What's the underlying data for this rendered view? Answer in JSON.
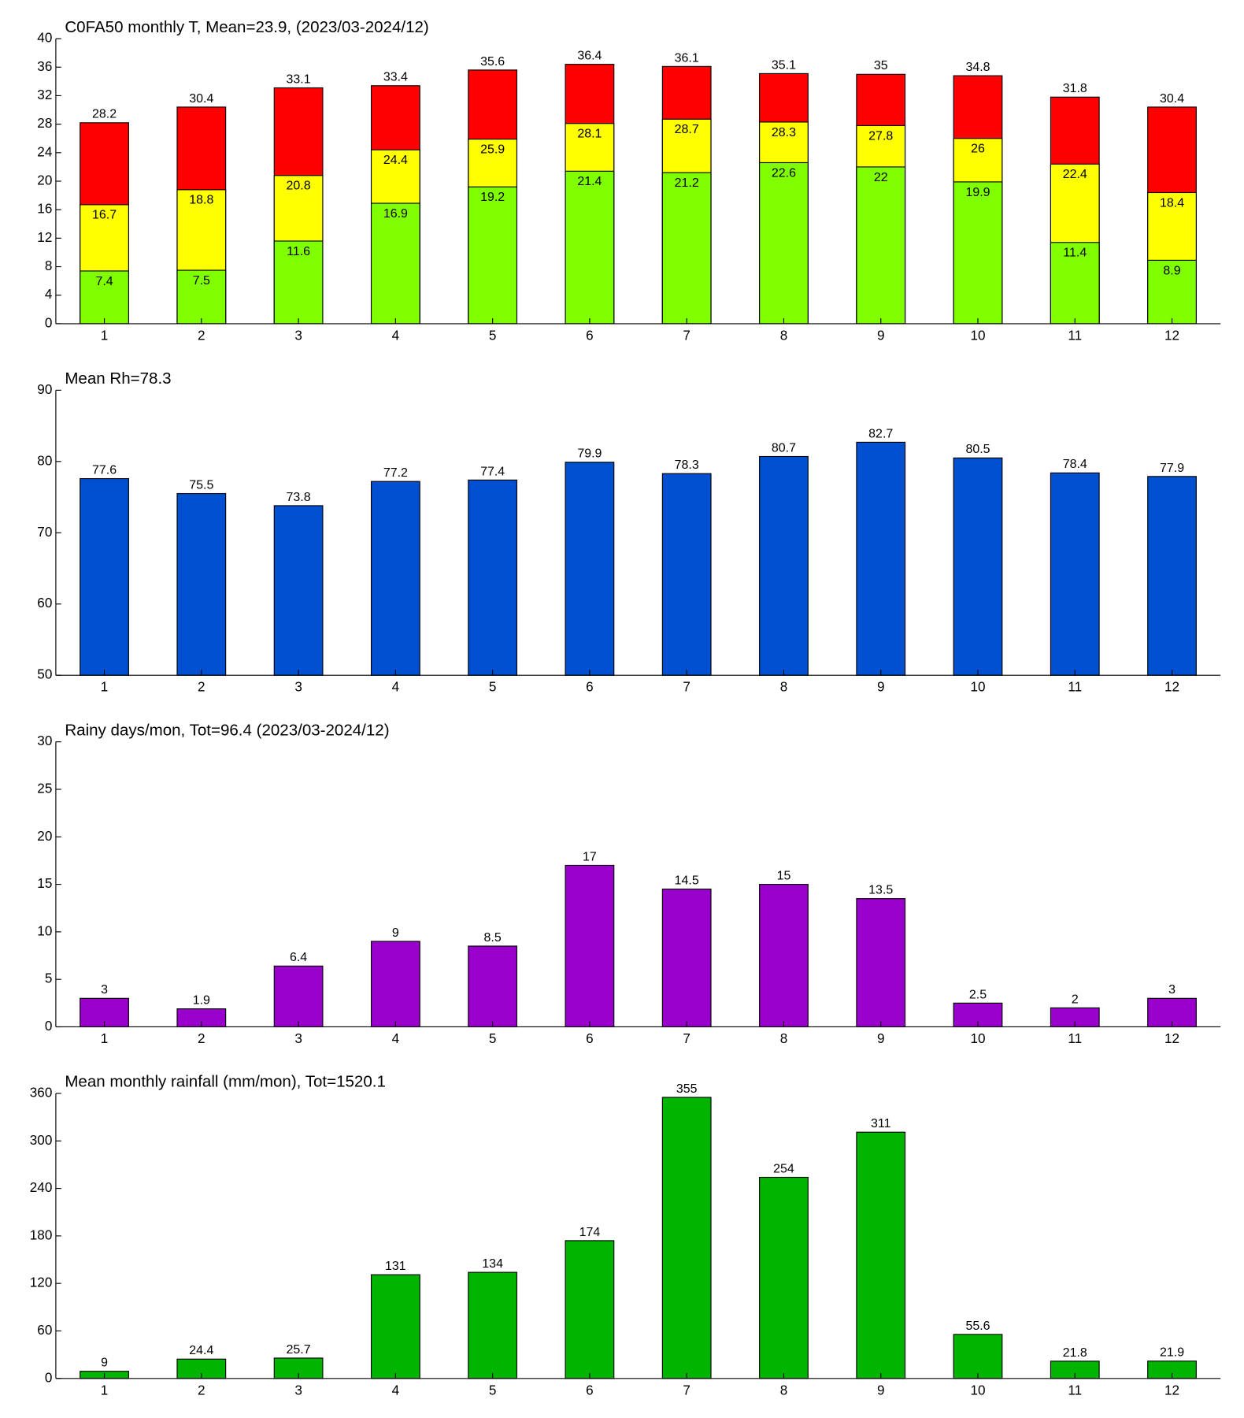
{
  "chart_data": [
    {
      "type": "bar",
      "title": "C0FA50 monthly T, Mean=23.9, (2023/03-2024/12)",
      "categories": [
        "1",
        "2",
        "3",
        "4",
        "5",
        "6",
        "7",
        "8",
        "9",
        "10",
        "11",
        "12"
      ],
      "series": [
        {
          "color": "#80ff00",
          "values": [
            7.4,
            7.5,
            11.6,
            16.9,
            19.2,
            21.4,
            21.2,
            22.6,
            22,
            19.9,
            11.4,
            8.9
          ]
        },
        {
          "color": "#ffff00",
          "values": [
            16.7,
            18.8,
            20.8,
            24.4,
            25.9,
            28.1,
            28.7,
            28.3,
            27.8,
            26,
            22.4,
            18.4
          ]
        },
        {
          "color": "#ff0000",
          "values": [
            28.2,
            30.4,
            33.1,
            33.4,
            35.6,
            36.4,
            36.1,
            35.1,
            35,
            34.8,
            31.8,
            30.4
          ]
        }
      ],
      "ylim": [
        0,
        40
      ],
      "yticks": [
        0,
        4,
        8,
        12,
        16,
        20,
        24,
        28,
        32,
        36,
        40
      ]
    },
    {
      "type": "bar",
      "title": "Mean Rh=78.3",
      "categories": [
        "1",
        "2",
        "3",
        "4",
        "5",
        "6",
        "7",
        "8",
        "9",
        "10",
        "11",
        "12"
      ],
      "series": [
        {
          "color": "#0050d0",
          "values": [
            77.6,
            75.5,
            73.8,
            77.2,
            77.4,
            79.9,
            78.3,
            80.7,
            82.7,
            80.5,
            78.4,
            77.9
          ]
        }
      ],
      "ylim": [
        50,
        90
      ],
      "yticks": [
        50,
        60,
        70,
        80,
        90
      ]
    },
    {
      "type": "bar",
      "title": "Rainy days/mon, Tot=96.4 (2023/03-2024/12)",
      "categories": [
        "1",
        "2",
        "3",
        "4",
        "5",
        "6",
        "7",
        "8",
        "9",
        "10",
        "11",
        "12"
      ],
      "series": [
        {
          "color": "#9900cc",
          "values": [
            3,
            1.9,
            6.4,
            9,
            8.5,
            17,
            14.5,
            15,
            13.5,
            2.5,
            2,
            3
          ]
        }
      ],
      "ylim": [
        0,
        30
      ],
      "yticks": [
        0,
        5,
        10,
        15,
        20,
        25,
        30
      ]
    },
    {
      "type": "bar",
      "title": "Mean monthly rainfall (mm/mon), Tot=1520.1",
      "categories": [
        "1",
        "2",
        "3",
        "4",
        "5",
        "6",
        "7",
        "8",
        "9",
        "10",
        "11",
        "12"
      ],
      "series": [
        {
          "color": "#00b400",
          "values": [
            9,
            24.4,
            25.7,
            131,
            134,
            174,
            355,
            254,
            311,
            55.6,
            21.8,
            21.9
          ]
        }
      ],
      "ylim": [
        0,
        360
      ],
      "yticks": [
        0,
        60,
        120,
        180,
        240,
        300,
        360
      ]
    }
  ]
}
